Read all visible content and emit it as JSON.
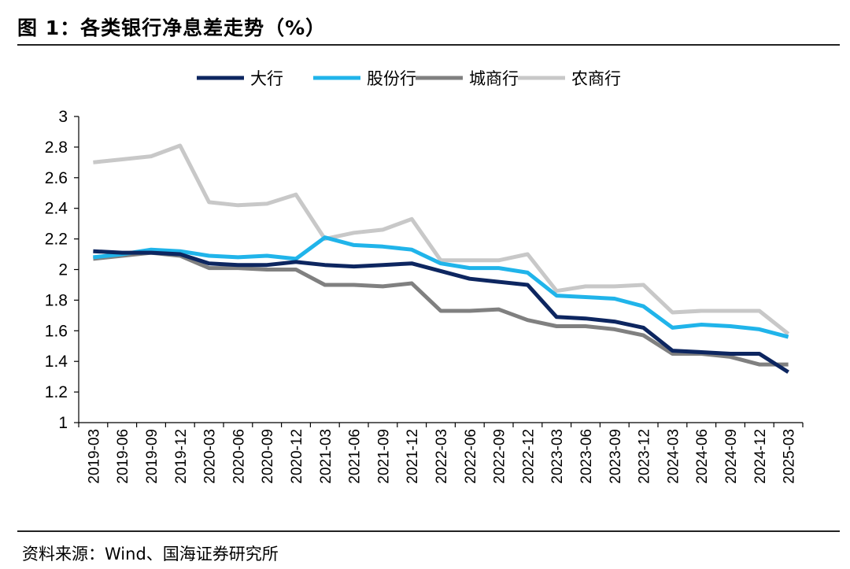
{
  "figure": {
    "title": "图 1：各类银行净息差走势（%）",
    "source": "资料来源：Wind、国海证券研究所"
  },
  "chart_data": {
    "type": "line",
    "title": "图 1：各类银行净息差走势（%）",
    "xlabel": "",
    "ylabel": "",
    "ylim": [
      1,
      3
    ],
    "yticks": [
      "1",
      "1.2",
      "1.4",
      "1.6",
      "1.8",
      "2",
      "2.2",
      "2.4",
      "2.6",
      "2.8",
      "3"
    ],
    "grid": false,
    "legend_position": "top-center",
    "x": [
      "2019-03",
      "2019-06",
      "2019-09",
      "2019-12",
      "2020-03",
      "2020-06",
      "2020-09",
      "2020-12",
      "2021-03",
      "2021-06",
      "2021-09",
      "2021-12",
      "2022-03",
      "2022-06",
      "2022-09",
      "2022-12",
      "2023-03",
      "2023-06",
      "2023-09",
      "2023-12",
      "2024-03",
      "2024-06",
      "2024-09",
      "2024-12",
      "2025-03"
    ],
    "series": [
      {
        "name": "大行",
        "color": "#0d2660",
        "values": [
          2.12,
          2.11,
          2.11,
          2.1,
          2.04,
          2.03,
          2.03,
          2.05,
          2.03,
          2.02,
          2.03,
          2.04,
          1.99,
          1.94,
          1.92,
          1.9,
          1.69,
          1.68,
          1.66,
          1.62,
          1.47,
          1.46,
          1.45,
          1.45,
          1.33
        ]
      },
      {
        "name": "股份行",
        "color": "#20b4ea",
        "values": [
          2.08,
          2.1,
          2.13,
          2.12,
          2.09,
          2.08,
          2.09,
          2.07,
          2.21,
          2.16,
          2.15,
          2.13,
          2.04,
          2.01,
          2.01,
          1.98,
          1.83,
          1.82,
          1.81,
          1.76,
          1.62,
          1.64,
          1.63,
          1.61,
          1.56
        ]
      },
      {
        "name": "城商行",
        "color": "#808080",
        "values": [
          2.07,
          2.09,
          2.11,
          2.09,
          2.01,
          2.01,
          2.0,
          2.0,
          1.9,
          1.9,
          1.89,
          1.91,
          1.73,
          1.73,
          1.74,
          1.67,
          1.63,
          1.63,
          1.61,
          1.57,
          1.45,
          1.45,
          1.43,
          1.38,
          1.38
        ]
      },
      {
        "name": "农商行",
        "color": "#c8c8c8",
        "values": [
          2.7,
          2.72,
          2.74,
          2.81,
          2.44,
          2.42,
          2.43,
          2.49,
          2.2,
          2.24,
          2.26,
          2.33,
          2.06,
          2.06,
          2.06,
          2.1,
          1.86,
          1.89,
          1.89,
          1.9,
          1.72,
          1.73,
          1.73,
          1.73,
          1.58
        ]
      }
    ]
  }
}
